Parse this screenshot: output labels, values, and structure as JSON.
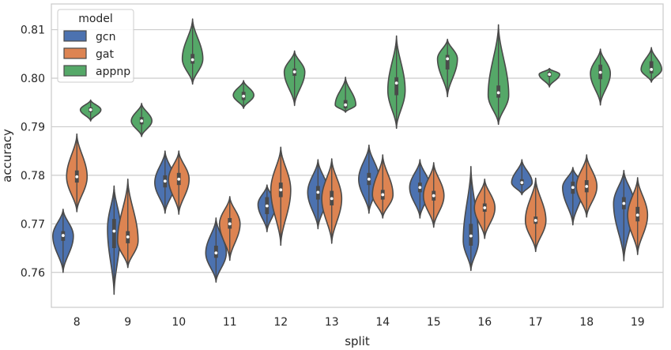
{
  "chart_data": {
    "type": "violin",
    "xlabel": "split",
    "ylabel": "accuracy",
    "ylim": [
      0.7528,
      0.8153
    ],
    "yticks": [
      0.76,
      0.77,
      0.78,
      0.79,
      0.8,
      0.81
    ],
    "ytick_labels": [
      "0.76",
      "0.77",
      "0.78",
      "0.79",
      "0.80",
      "0.81"
    ],
    "grid": "horizontal",
    "categories": [
      "8",
      "9",
      "10",
      "11",
      "12",
      "13",
      "14",
      "15",
      "16",
      "17",
      "18",
      "19"
    ],
    "legend": {
      "title": "model",
      "position": "top-left"
    },
    "series": [
      {
        "name": "gcn",
        "color": "#4c72b0",
        "violins": [
          {
            "min": 0.76,
            "q1": 0.7665,
            "median": 0.7676,
            "q3": 0.7685,
            "max": 0.773,
            "peak": 0.7675
          },
          {
            "min": 0.7555,
            "q1": 0.765,
            "median": 0.7685,
            "q3": 0.771,
            "max": 0.7778,
            "peak": 0.769
          },
          {
            "min": 0.7722,
            "q1": 0.7775,
            "median": 0.7788,
            "q3": 0.78,
            "max": 0.785,
            "peak": 0.7785
          },
          {
            "min": 0.758,
            "q1": 0.763,
            "median": 0.764,
            "q3": 0.7655,
            "max": 0.7712,
            "peak": 0.764
          },
          {
            "min": 0.7684,
            "q1": 0.772,
            "median": 0.7737,
            "q3": 0.7755,
            "max": 0.778,
            "peak": 0.774
          },
          {
            "min": 0.769,
            "q1": 0.775,
            "median": 0.7765,
            "q3": 0.7778,
            "max": 0.7832,
            "peak": 0.7765
          },
          {
            "min": 0.7722,
            "q1": 0.778,
            "median": 0.7792,
            "q3": 0.7805,
            "max": 0.7862,
            "peak": 0.7792
          },
          {
            "min": 0.7712,
            "q1": 0.7765,
            "median": 0.7775,
            "q3": 0.7785,
            "max": 0.7832,
            "peak": 0.7775
          },
          {
            "min": 0.7604,
            "q1": 0.7655,
            "median": 0.7675,
            "q3": 0.77,
            "max": 0.7818,
            "peak": 0.7665
          },
          {
            "min": 0.776,
            "q1": 0.778,
            "median": 0.7785,
            "q3": 0.7792,
            "max": 0.7832,
            "peak": 0.7785
          },
          {
            "min": 0.7698,
            "q1": 0.7762,
            "median": 0.7775,
            "q3": 0.7787,
            "max": 0.7816,
            "peak": 0.7775
          },
          {
            "min": 0.7624,
            "q1": 0.773,
            "median": 0.7742,
            "q3": 0.7755,
            "max": 0.781,
            "peak": 0.7742
          }
        ]
      },
      {
        "name": "gat",
        "color": "#dd8452",
        "violins": [
          {
            "min": 0.7725,
            "q1": 0.7785,
            "median": 0.7797,
            "q3": 0.781,
            "max": 0.7885,
            "peak": 0.7797
          },
          {
            "min": 0.761,
            "q1": 0.766,
            "median": 0.7673,
            "q3": 0.7685,
            "max": 0.7792,
            "peak": 0.7665
          },
          {
            "min": 0.772,
            "q1": 0.778,
            "median": 0.7792,
            "q3": 0.7805,
            "max": 0.785,
            "peak": 0.7792
          },
          {
            "min": 0.7625,
            "q1": 0.769,
            "median": 0.77,
            "q3": 0.7712,
            "max": 0.7756,
            "peak": 0.77
          },
          {
            "min": 0.7656,
            "q1": 0.7755,
            "median": 0.777,
            "q3": 0.7785,
            "max": 0.7858,
            "peak": 0.777
          },
          {
            "min": 0.766,
            "q1": 0.7738,
            "median": 0.7752,
            "q3": 0.7768,
            "max": 0.7834,
            "peak": 0.7752
          },
          {
            "min": 0.7712,
            "q1": 0.775,
            "median": 0.776,
            "q3": 0.777,
            "max": 0.7842,
            "peak": 0.776
          },
          {
            "min": 0.7693,
            "q1": 0.7748,
            "median": 0.7758,
            "q3": 0.7768,
            "max": 0.7826,
            "peak": 0.7758
          },
          {
            "min": 0.767,
            "q1": 0.7725,
            "median": 0.7733,
            "q3": 0.7742,
            "max": 0.7792,
            "peak": 0.7733
          },
          {
            "min": 0.7643,
            "q1": 0.77,
            "median": 0.7707,
            "q3": 0.7715,
            "max": 0.7794,
            "peak": 0.7707
          },
          {
            "min": 0.7714,
            "q1": 0.7765,
            "median": 0.7777,
            "q3": 0.779,
            "max": 0.7842,
            "peak": 0.7777
          },
          {
            "min": 0.7637,
            "q1": 0.7705,
            "median": 0.7718,
            "q3": 0.7735,
            "max": 0.7795,
            "peak": 0.7718
          }
        ]
      },
      {
        "name": "appnp",
        "color": "#55a868",
        "violins": [
          {
            "min": 0.7912,
            "q1": 0.793,
            "median": 0.7935,
            "q3": 0.794,
            "max": 0.7955,
            "peak": 0.7935
          },
          {
            "min": 0.788,
            "q1": 0.7905,
            "median": 0.7912,
            "q3": 0.792,
            "max": 0.7948,
            "peak": 0.7912
          },
          {
            "min": 0.7988,
            "q1": 0.803,
            "median": 0.8038,
            "q3": 0.805,
            "max": 0.8122,
            "peak": 0.804
          },
          {
            "min": 0.7938,
            "q1": 0.7955,
            "median": 0.7963,
            "q3": 0.7972,
            "max": 0.7995,
            "peak": 0.7965
          },
          {
            "min": 0.7944,
            "q1": 0.8005,
            "median": 0.8013,
            "q3": 0.802,
            "max": 0.8056,
            "peak": 0.8013
          },
          {
            "min": 0.793,
            "q1": 0.7938,
            "median": 0.7945,
            "q3": 0.7955,
            "max": 0.8002,
            "peak": 0.7945
          },
          {
            "min": 0.7897,
            "q1": 0.7965,
            "median": 0.799,
            "q3": 0.8002,
            "max": 0.8087,
            "peak": 0.7975
          },
          {
            "min": 0.7962,
            "q1": 0.8018,
            "median": 0.804,
            "q3": 0.8048,
            "max": 0.808,
            "peak": 0.804
          },
          {
            "min": 0.7905,
            "q1": 0.796,
            "median": 0.797,
            "q3": 0.7985,
            "max": 0.811,
            "peak": 0.7965
          },
          {
            "min": 0.7982,
            "q1": 0.8003,
            "median": 0.8008,
            "q3": 0.8013,
            "max": 0.802,
            "peak": 0.8008
          },
          {
            "min": 0.7945,
            "q1": 0.7998,
            "median": 0.8012,
            "q3": 0.8028,
            "max": 0.806,
            "peak": 0.801
          },
          {
            "min": 0.7992,
            "q1": 0.801,
            "median": 0.8018,
            "q3": 0.8035,
            "max": 0.8063,
            "peak": 0.8018
          }
        ]
      }
    ]
  }
}
